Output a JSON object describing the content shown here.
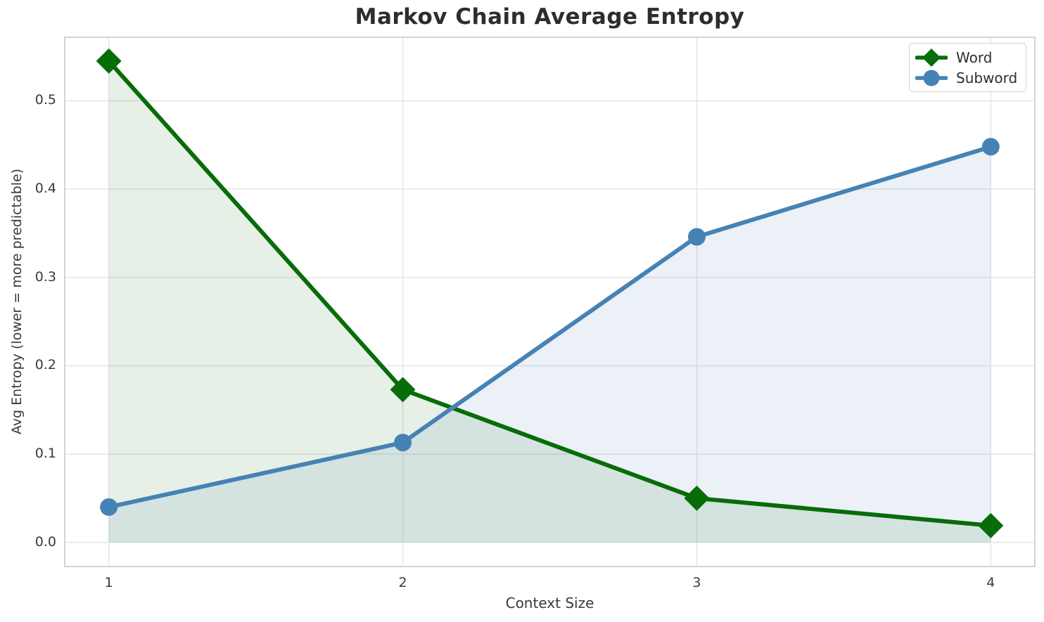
{
  "chart_data": {
    "type": "line",
    "title": "Markov Chain Average Entropy",
    "xlabel": "Context Size",
    "ylabel": "Avg Entropy (lower = more predictable)",
    "x": [
      1,
      2,
      3,
      4
    ],
    "series": [
      {
        "name": "Word",
        "values": [
          0.545,
          0.173,
          0.05,
          0.019
        ],
        "color": "#086c08",
        "marker": "diamond",
        "fill_to_zero": true,
        "fill_opacity": 0.1
      },
      {
        "name": "Subword",
        "values": [
          0.04,
          0.113,
          0.346,
          0.448
        ],
        "color": "#4682b4",
        "marker": "circle",
        "fill_to_zero": true,
        "fill_opacity": 0.11
      }
    ],
    "x_ticks": {
      "values": [
        1,
        2,
        3,
        4
      ],
      "labels": [
        "1",
        "2",
        "3",
        "4"
      ]
    },
    "y_ticks": {
      "values": [
        0.0,
        0.1,
        0.2,
        0.3,
        0.4,
        0.5
      ],
      "labels": [
        "0.0",
        "0.1",
        "0.2",
        "0.3",
        "0.4",
        "0.5"
      ]
    },
    "xlim": [
      0.85,
      4.15
    ],
    "ylim": [
      -0.0273,
      0.572
    ],
    "grid": true,
    "legend": {
      "position": "upper right"
    },
    "colors": {
      "grid": "#e7e7e7",
      "spine": "#d4d4d4",
      "text": "#3a3a3a",
      "title": "#2d2d2d",
      "background": "#ffffff"
    }
  }
}
